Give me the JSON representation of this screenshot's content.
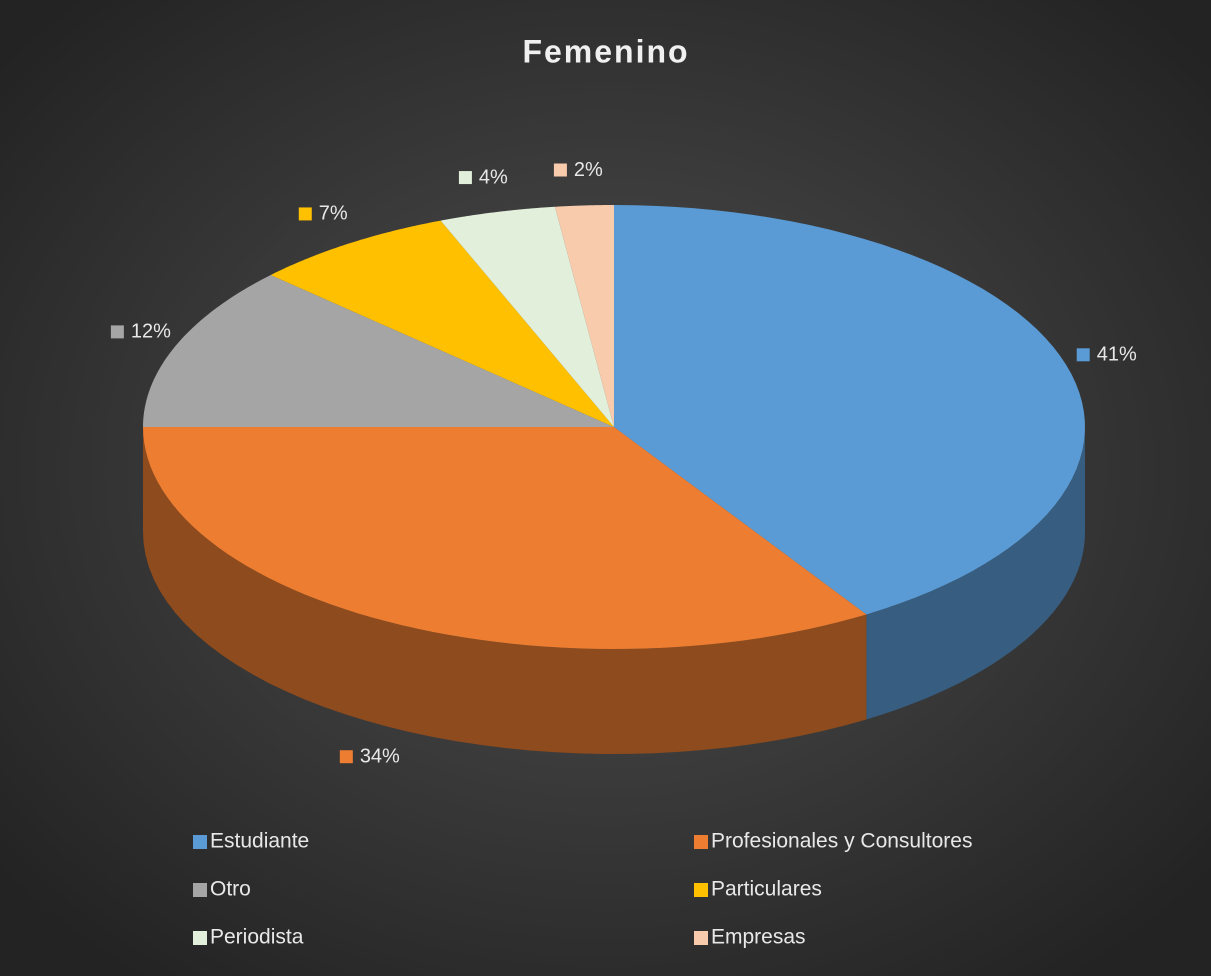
{
  "chart_data": {
    "type": "pie",
    "title": "Femenino",
    "categories": [
      "Estudiante",
      "Profesionales y Consultores",
      "Otro",
      "Particulares",
      "Periodista",
      "Empresas"
    ],
    "values": [
      41,
      34,
      12,
      7,
      4,
      2
    ],
    "value_labels": [
      "41%",
      "34%",
      "12%",
      "7%",
      "4%",
      "2%"
    ],
    "colors": [
      "#5b9bd5",
      "#ed7d31",
      "#a5a5a5",
      "#ffc000",
      "#e2efda",
      "#f8cbad"
    ],
    "legend": "bottom"
  }
}
